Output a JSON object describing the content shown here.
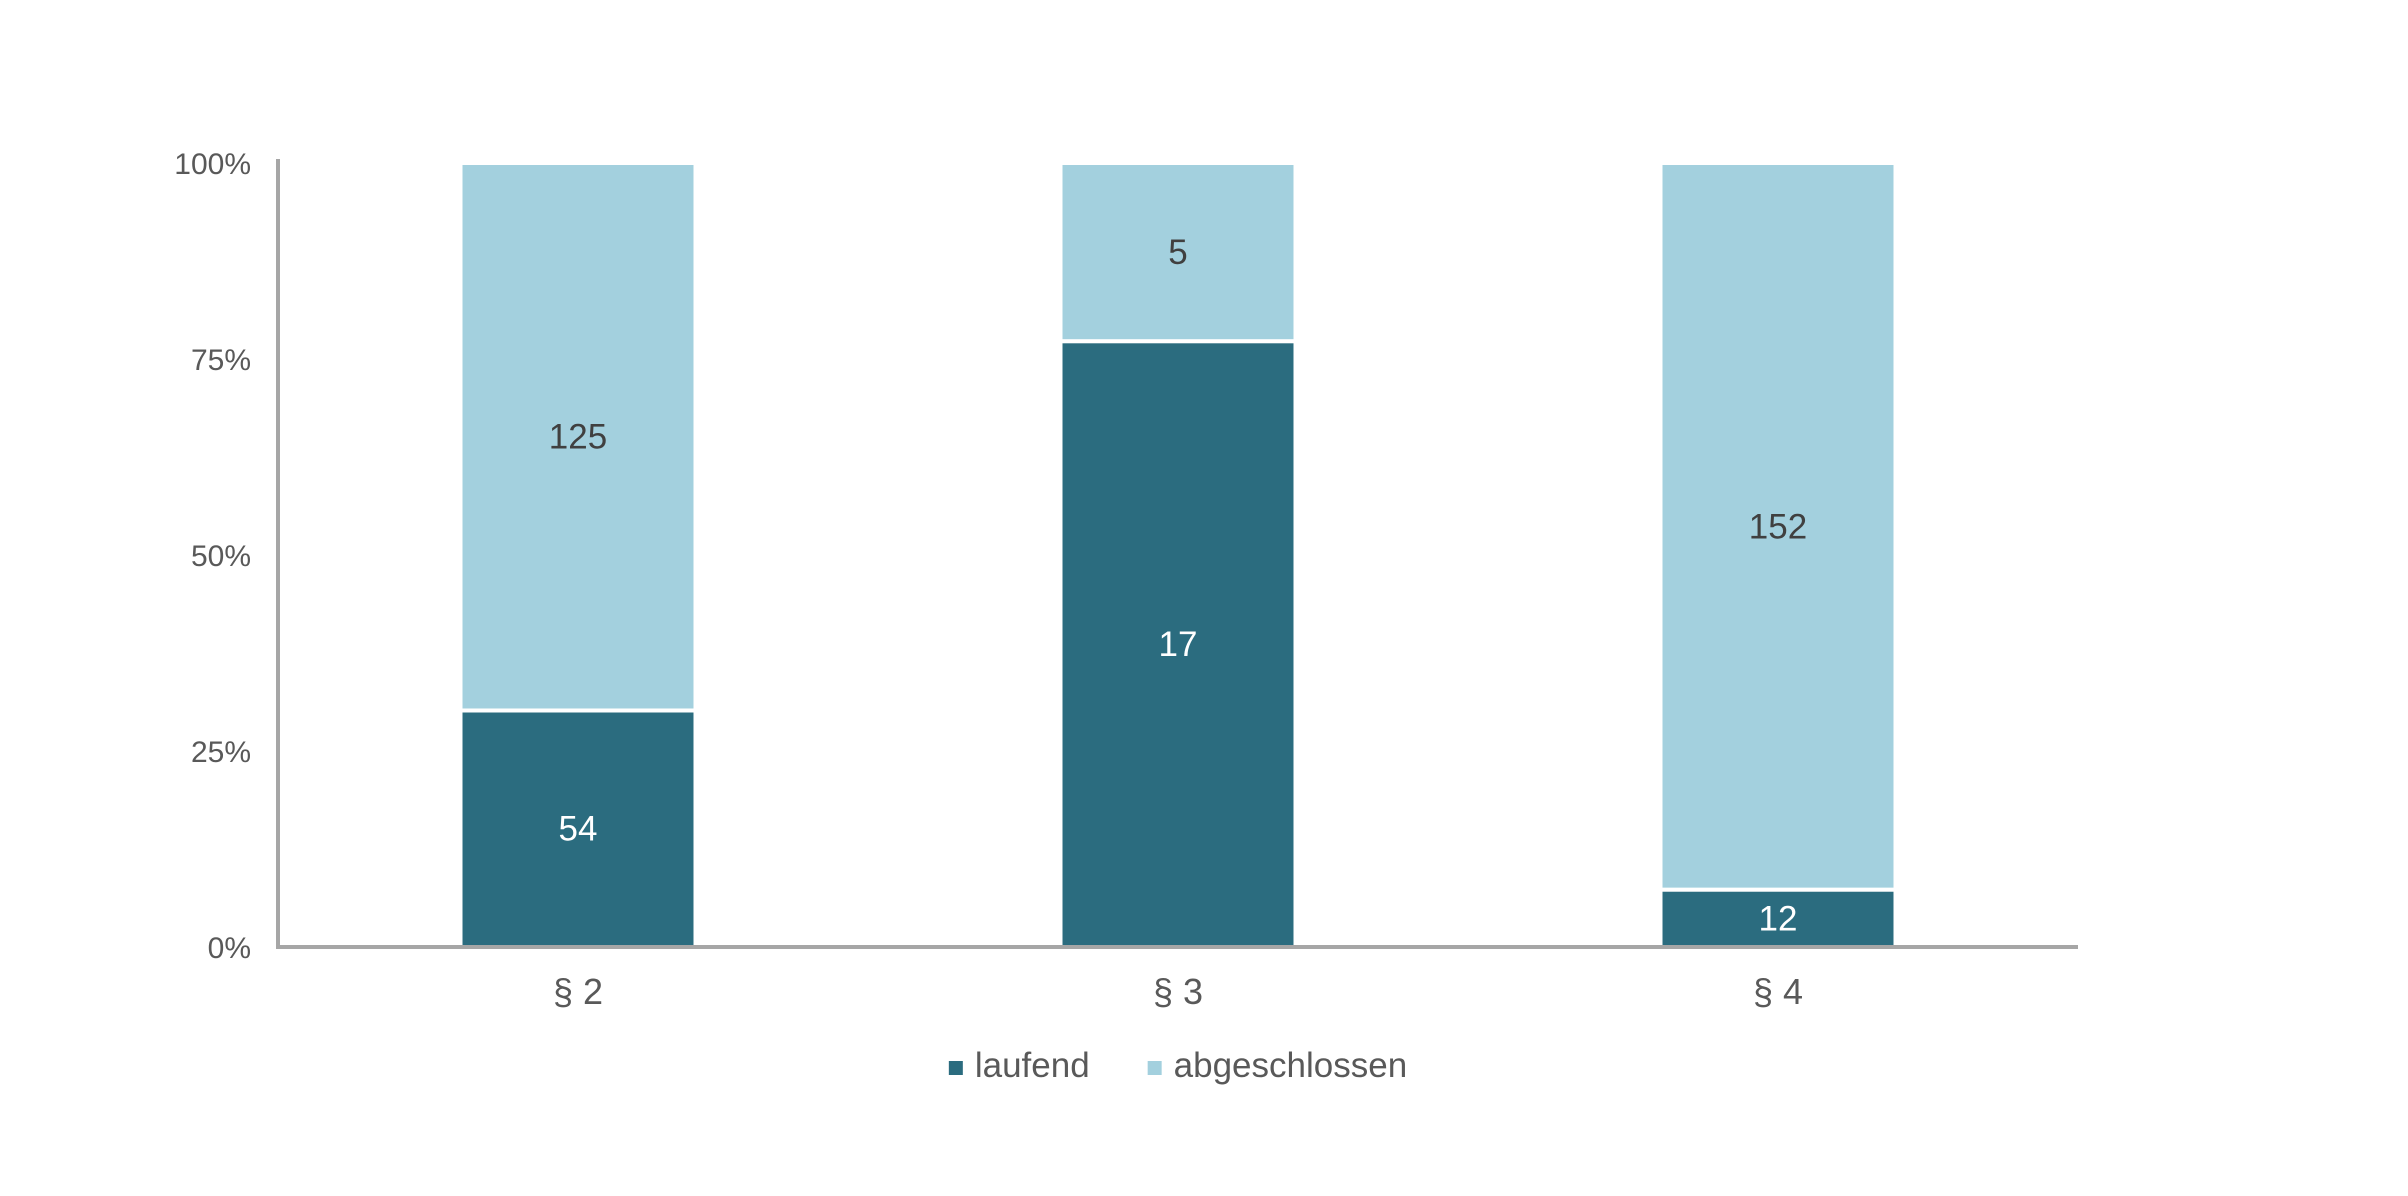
{
  "chart_data": {
    "type": "bar",
    "stacked": true,
    "normalized": true,
    "categories": [
      "§ 2",
      "§ 3",
      "§ 4"
    ],
    "series": [
      {
        "name": "laufend",
        "values": [
          54,
          17,
          12
        ],
        "color": "#2b6c7f",
        "label_color": "#ffffff"
      },
      {
        "name": "abgeschlossen",
        "values": [
          125,
          5,
          152
        ],
        "color": "#a3d0de",
        "label_color": "#404040"
      }
    ],
    "yticks": [
      "0%",
      "25%",
      "50%",
      "75%",
      "100%"
    ],
    "ylim": [
      0,
      100
    ],
    "grid": false,
    "legend_position": "bottom"
  }
}
